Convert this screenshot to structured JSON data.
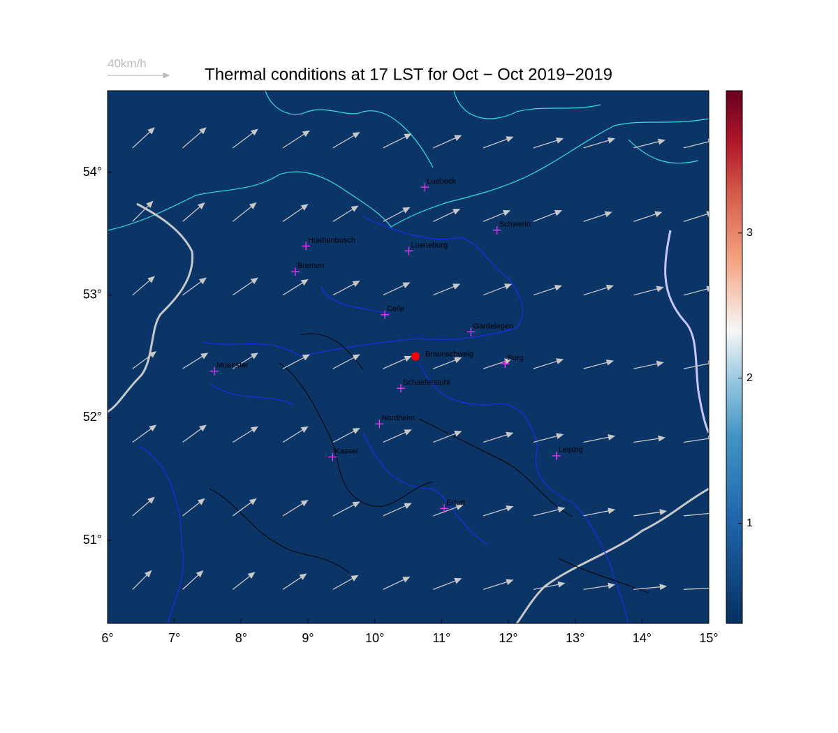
{
  "map": {
    "title": "Thermal conditions at 17 LST for Oct − Oct  2019−2019",
    "reference": {
      "label": "40km/h",
      "speed": 40
    },
    "xlim": [
      6,
      15
    ],
    "ylim": [
      50.323,
      54.666
    ],
    "xticks": [
      {
        "value": 6,
        "label": "6°"
      },
      {
        "value": 7,
        "label": "7°"
      },
      {
        "value": 8,
        "label": "8°"
      },
      {
        "value": 9,
        "label": "9°"
      },
      {
        "value": 10,
        "label": "10°"
      },
      {
        "value": 11,
        "label": "11°"
      },
      {
        "value": 12,
        "label": "12°"
      },
      {
        "value": 13,
        "label": "13°"
      },
      {
        "value": 14,
        "label": "14°"
      },
      {
        "value": 15,
        "label": "15°"
      }
    ],
    "yticks": [
      {
        "value": 51,
        "label": "51°"
      },
      {
        "value": 52,
        "label": "52°"
      },
      {
        "value": 53,
        "label": "53°"
      },
      {
        "value": 54,
        "label": "54°"
      }
    ],
    "colorbar": {
      "clim": [
        0.31,
        3.98
      ],
      "ticks": [
        1,
        2,
        3
      ]
    },
    "station": {
      "name": "Braunschweig",
      "lon": 10.61,
      "lat": 52.5,
      "color": "#ff0000"
    },
    "cities": [
      {
        "name": "Luebeck",
        "lon": 10.75,
        "lat": 53.88
      },
      {
        "name": "Schwerin",
        "lon": 11.83,
        "lat": 53.53
      },
      {
        "name": "Huettenbusch",
        "lon": 8.97,
        "lat": 53.4
      },
      {
        "name": "Lueneburg",
        "lon": 10.51,
        "lat": 53.36
      },
      {
        "name": "Bremen",
        "lon": 8.81,
        "lat": 53.19
      },
      {
        "name": "Celle",
        "lon": 10.15,
        "lat": 52.84
      },
      {
        "name": "Gardelegen",
        "lon": 11.44,
        "lat": 52.7
      },
      {
        "name": "Burg",
        "lon": 11.95,
        "lat": 52.44
      },
      {
        "name": "Muenster",
        "lon": 7.6,
        "lat": 52.38
      },
      {
        "name": "Schaeferstuhl",
        "lon": 10.39,
        "lat": 52.24
      },
      {
        "name": "Nordheim",
        "lon": 10.07,
        "lat": 51.95
      },
      {
        "name": "Leipzig",
        "lon": 12.72,
        "lat": 51.69
      },
      {
        "name": "Kassel",
        "lon": 9.37,
        "lat": 51.68
      },
      {
        "name": "Erfurt",
        "lon": 11.04,
        "lat": 51.26
      }
    ],
    "wind": {
      "lons": [
        6.375,
        7.125,
        7.875,
        8.625,
        9.375,
        10.125,
        10.875,
        11.625,
        12.375,
        13.125,
        13.875,
        14.625
      ],
      "lats": [
        50.6,
        51.2,
        51.8,
        52.4,
        53.0,
        53.6,
        54.2
      ],
      "u": [
        [
          12,
          13,
          14,
          15,
          16,
          17,
          18,
          19,
          20,
          20,
          21,
          21
        ],
        [
          14,
          14,
          15,
          16,
          17,
          18,
          19,
          19,
          20,
          20,
          21,
          21
        ],
        [
          15,
          15,
          16,
          16,
          17,
          18,
          18,
          19,
          19,
          20,
          20,
          20
        ],
        [
          15,
          16,
          16,
          17,
          17,
          18,
          18,
          18,
          19,
          19,
          19,
          20
        ],
        [
          14,
          15,
          16,
          16,
          17,
          17,
          17,
          18,
          18,
          19,
          19,
          19
        ],
        [
          13,
          14,
          15,
          16,
          16,
          17,
          17,
          17,
          18,
          18,
          18,
          19
        ],
        [
          14,
          15,
          16,
          17,
          17,
          18,
          18,
          19,
          19,
          20,
          20,
          20
        ]
      ],
      "v": [
        [
          12,
          12,
          11,
          10,
          9,
          8,
          7,
          6,
          4,
          3,
          2,
          1
        ],
        [
          12,
          11,
          11,
          10,
          9,
          8,
          7,
          6,
          5,
          4,
          3,
          2
        ],
        [
          11,
          11,
          10,
          10,
          9,
          8,
          7,
          6,
          5,
          4,
          3,
          3
        ],
        [
          11,
          10,
          10,
          9,
          9,
          8,
          7,
          6,
          6,
          5,
          4,
          4
        ],
        [
          12,
          11,
          11,
          10,
          9,
          8,
          7,
          7,
          6,
          6,
          5,
          5
        ],
        [
          13,
          12,
          12,
          11,
          10,
          9,
          8,
          7,
          7,
          6,
          6,
          6
        ],
        [
          13,
          13,
          12,
          11,
          10,
          9,
          8,
          7,
          6,
          6,
          5,
          5
        ]
      ]
    }
  }
}
